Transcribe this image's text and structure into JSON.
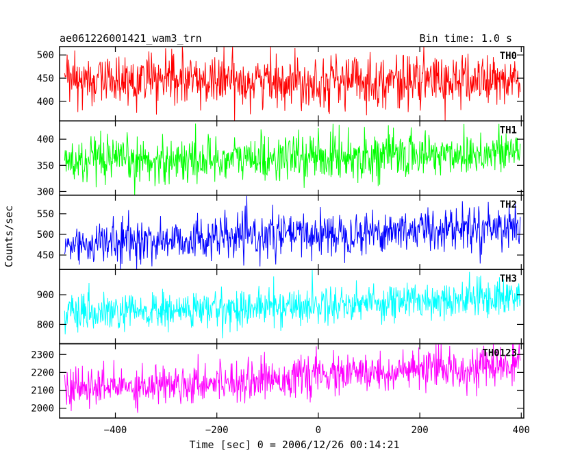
{
  "header": {
    "title": "ae061226001421_wam3_trn",
    "bin_time": "Bin time: 1.0 s"
  },
  "chart_data": {
    "type": "line",
    "xlabel": "Time [sec] 0 = 2006/12/26 00:14:21",
    "ylabel": "Counts/sec",
    "xlim": [
      -510,
      405
    ],
    "xticks": [
      -400,
      -200,
      0,
      200,
      400
    ],
    "x_start": -500,
    "x_end": 398,
    "x_step": 1,
    "panels": [
      {
        "name": "TH0",
        "color": "#ff0000",
        "ylim": [
          358,
          518
        ],
        "yticks": [
          400,
          450,
          500
        ],
        "mean_start": 445,
        "mean_end": 445,
        "noise_sd": 28
      },
      {
        "name": "TH1",
        "color": "#00ff00",
        "ylim": [
          293,
          435
        ],
        "yticks": [
          300,
          350,
          400
        ],
        "mean_start": 355,
        "mean_end": 375,
        "noise_sd": 22
      },
      {
        "name": "TH2",
        "color": "#0000ff",
        "ylim": [
          415,
          595
        ],
        "yticks": [
          450,
          500,
          550
        ],
        "mean_start": 475,
        "mean_end": 522,
        "noise_sd": 26
      },
      {
        "name": "TH3",
        "color": "#00ffff",
        "ylim": [
          735,
          985
        ],
        "yticks": [
          800,
          900
        ],
        "mean_start": 830,
        "mean_end": 895,
        "noise_sd": 32
      },
      {
        "name": "TH0123",
        "color": "#ff00ff",
        "ylim": [
          1945,
          2360
        ],
        "yticks": [
          2000,
          2100,
          2200,
          2300
        ],
        "mean_start": 2105,
        "mean_end": 2240,
        "noise_sd": 55
      }
    ]
  }
}
